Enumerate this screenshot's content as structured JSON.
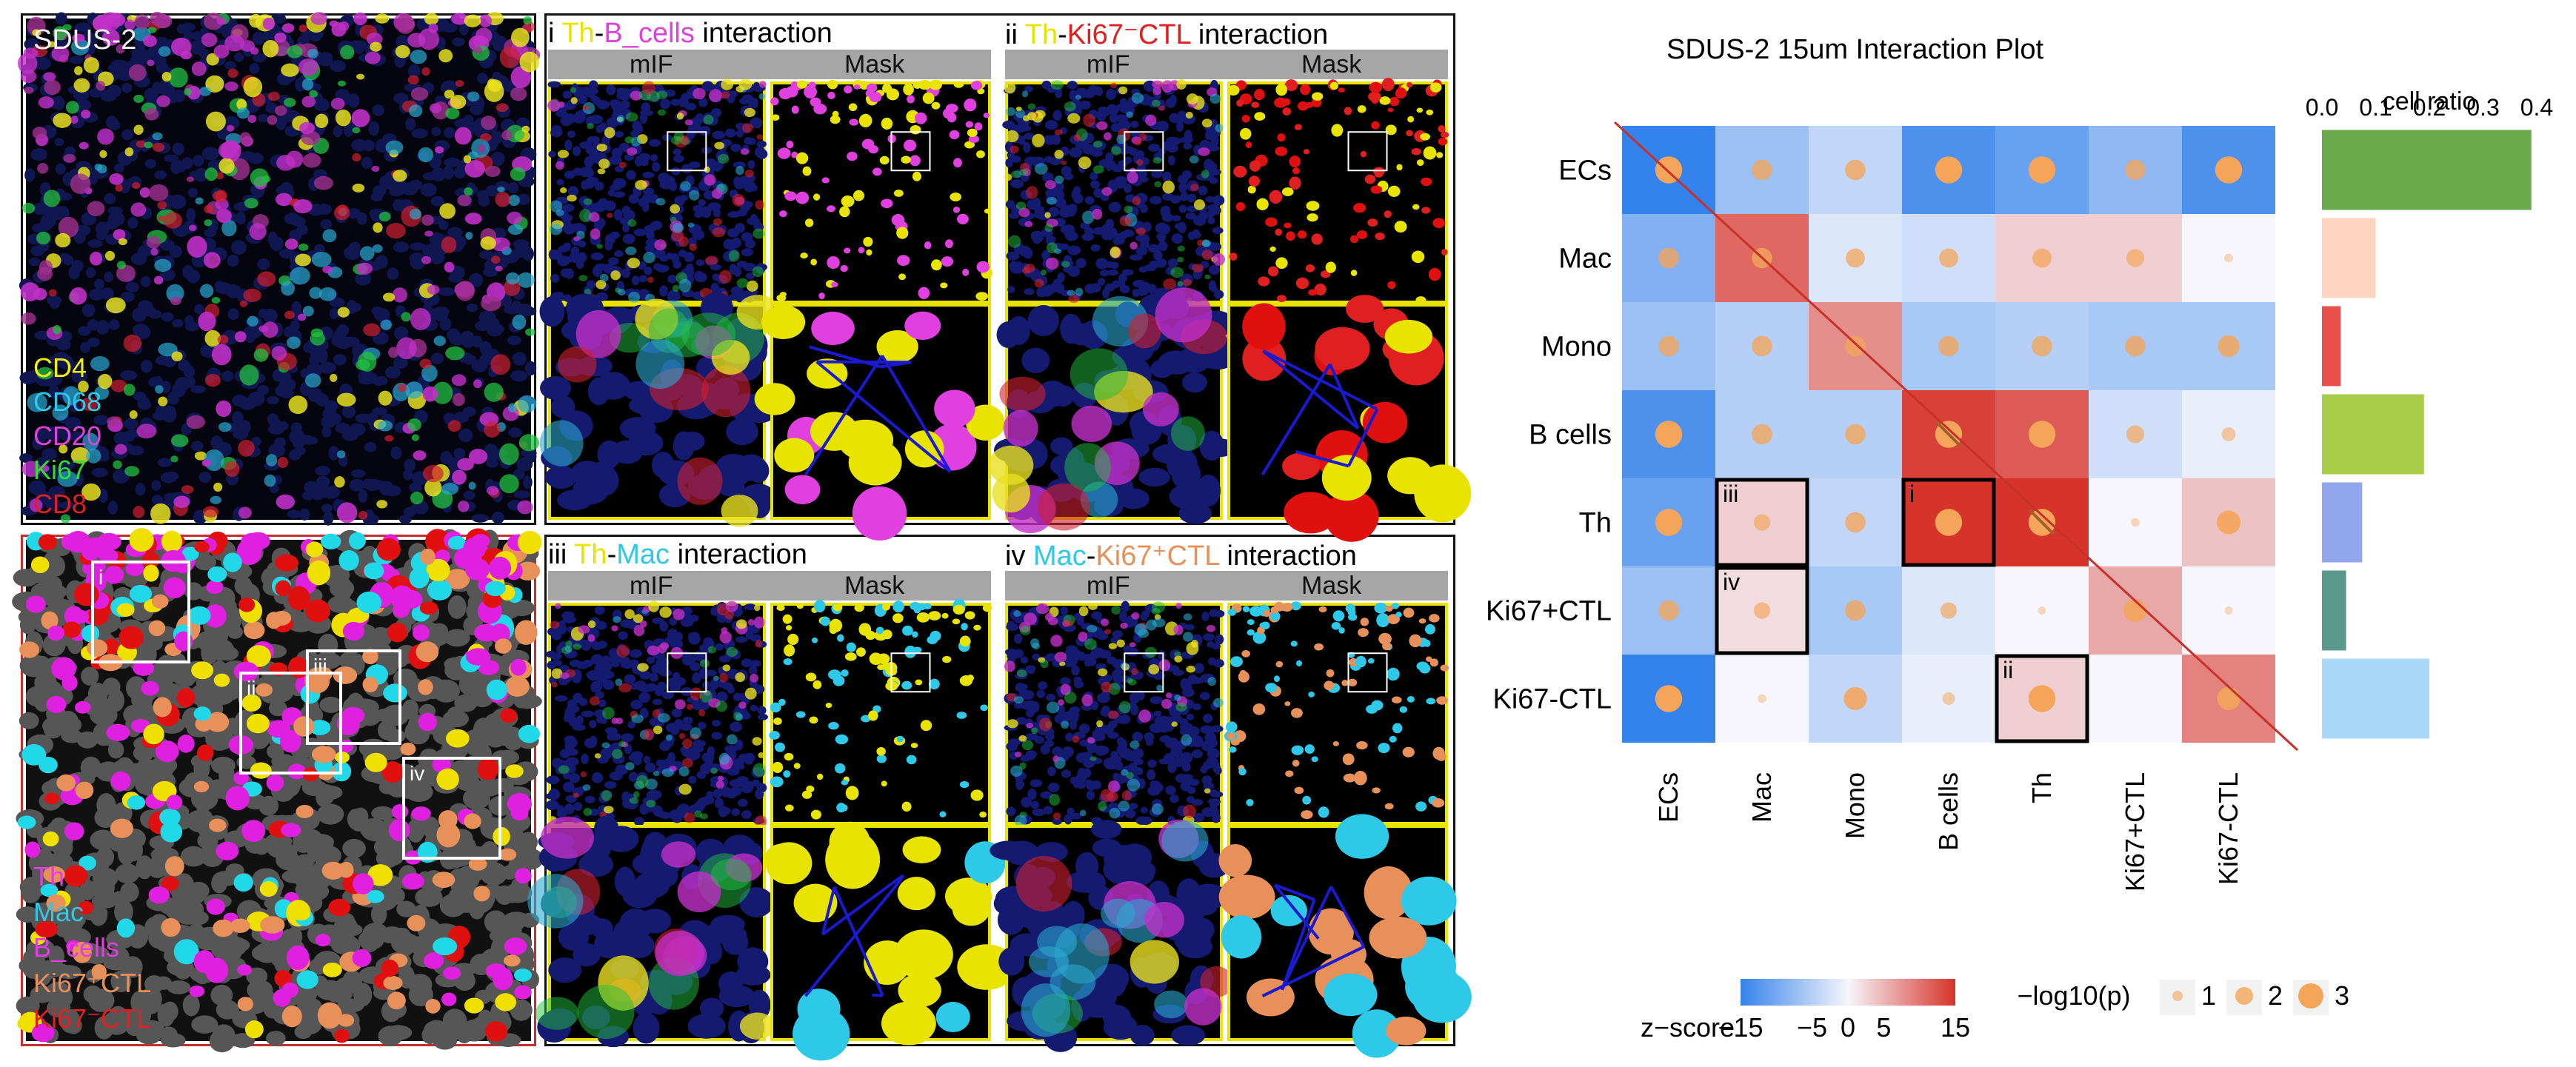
{
  "left_figure": {
    "sample_label": "SDUS-2",
    "marker_legend": [
      {
        "label": "CD4",
        "color": "#f5f000"
      },
      {
        "label": "CD68",
        "color": "#2ec8e8"
      },
      {
        "label": "CD20",
        "color": "#e040e0"
      },
      {
        "label": "Ki67",
        "color": "#30e030"
      },
      {
        "label": "CD8",
        "color": "#e02020"
      }
    ],
    "mask_legend": [
      {
        "label": "Th",
        "color": "#e040e0"
      },
      {
        "label": "Mac",
        "color": "#2ec8e8"
      },
      {
        "label": "B_cells",
        "color": "#e040e0"
      },
      {
        "label": "Ki67⁺CTL",
        "color": "#e8905a"
      },
      {
        "label": "Ki67⁻CTL",
        "color": "#e02020"
      }
    ],
    "panels": [
      {
        "numeral": "i",
        "cell_a": "Th",
        "cell_a_color": "#e8e400",
        "sep": "-",
        "cell_b": "B_cells",
        "cell_b_color": "#e040e0",
        "suffix": " interaction",
        "col_left": "mIF",
        "col_right": "Mask"
      },
      {
        "numeral": "ii",
        "cell_a": "Th",
        "cell_a_color": "#e8e400",
        "sep": "-",
        "cell_b": "Ki67⁻CTL",
        "cell_b_color": "#e02020",
        "suffix": " interaction",
        "col_left": "mIF",
        "col_right": "Mask"
      },
      {
        "numeral": "iii",
        "cell_a": "Th",
        "cell_a_color": "#e8e400",
        "sep": "-",
        "cell_b": "Mac",
        "cell_b_color": "#2ec8e8",
        "suffix": " interaction",
        "col_left": "mIF",
        "col_right": "Mask"
      },
      {
        "numeral": "iv",
        "cell_a": "Mac",
        "cell_a_color": "#2ec8e8",
        "sep": "-",
        "cell_b": "Ki67⁺CTL",
        "cell_b_color": "#e8905a",
        "suffix": " interaction",
        "col_left": "mIF",
        "col_right": "Mask"
      }
    ],
    "roi_labels": [
      "i",
      "ii",
      "iii",
      "iv"
    ]
  },
  "chart_data": {
    "type": "heatmap",
    "title": "SDUS-2 15um Interaction Plot",
    "rows": [
      "ECs",
      "Mac",
      "Mono",
      "B cells",
      "Th",
      "Ki67+CTL",
      "Ki67-CTL"
    ],
    "cols": [
      "ECs",
      "Mac",
      "Mono",
      "B cells",
      "Th",
      "Ki67+CTL",
      "Ki67-CTL"
    ],
    "z_scores": [
      [
        -15,
        -7,
        -4,
        -13,
        -11,
        -8,
        -13
      ],
      [
        -9,
        11,
        -2,
        -3,
        3,
        3,
        0
      ],
      [
        -7,
        -5,
        8,
        -6,
        -5,
        -6,
        -6
      ],
      [
        -13,
        -5,
        -5,
        14,
        12,
        -3,
        -1
      ],
      [
        -11,
        3,
        -4,
        15,
        15,
        0,
        4
      ],
      [
        -7,
        2,
        -6,
        -2,
        0,
        6,
        0
      ],
      [
        -15,
        0,
        -4,
        -1,
        3,
        0,
        9
      ]
    ],
    "neg_log10_p": [
      [
        3,
        2,
        2,
        3,
        3,
        2,
        3
      ],
      [
        2,
        2,
        1.8,
        1.8,
        1.8,
        1.6,
        0.2
      ],
      [
        2,
        2,
        2,
        2,
        2,
        2,
        2.2
      ],
      [
        3,
        2,
        2,
        3,
        3,
        1.6,
        1
      ],
      [
        3,
        1.4,
        2,
        3,
        3,
        0.2,
        2.5
      ],
      [
        2,
        1.4,
        2,
        1.4,
        0.1,
        2.4,
        0.1
      ],
      [
        3,
        0.2,
        2.4,
        0.8,
        3,
        0,
        2.4
      ]
    ],
    "slashed_cells": [
      [
        3,
        3
      ],
      [
        4,
        4
      ]
    ],
    "highlighted_cells": [
      {
        "row": 4,
        "col": 1,
        "label": "iii"
      },
      {
        "row": 4,
        "col": 3,
        "label": "i"
      },
      {
        "row": 5,
        "col": 1,
        "label": "iv"
      },
      {
        "row": 6,
        "col": 4,
        "label": "ii"
      }
    ],
    "cell_ratio": {
      "title": "cell ratio",
      "ticks": [
        "0.0",
        "0.1",
        "0.2",
        "0.3",
        "0.4"
      ],
      "xlim": [
        0,
        0.4
      ],
      "values": [
        0.39,
        0.1,
        0.035,
        0.19,
        0.075,
        0.045,
        0.2
      ],
      "colors": [
        "#6aaa4a",
        "#fcd4c0",
        "#e8504a",
        "#a8cc48",
        "#92a6ee",
        "#5a9a8c",
        "#a8d8f8"
      ]
    },
    "colorbar": {
      "label": "z−score",
      "ticks": [
        "−15",
        "−5",
        "0",
        "5",
        "15"
      ],
      "range": [
        -15,
        15
      ]
    },
    "size_legend": {
      "title": "−log10(p)",
      "items": [
        "1",
        "2",
        "3"
      ]
    }
  }
}
